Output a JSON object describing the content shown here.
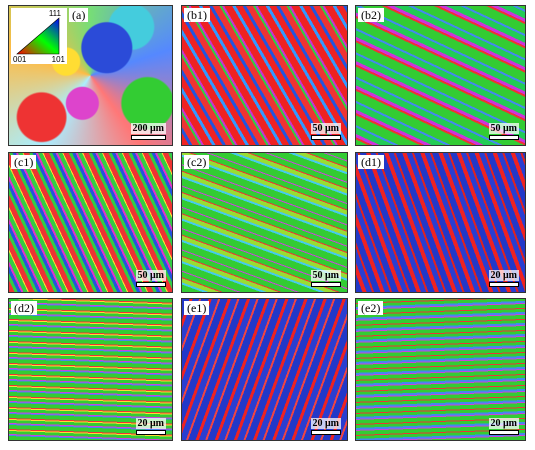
{
  "legend": {
    "top": "111",
    "left": "001",
    "right": "101"
  },
  "panels": [
    {
      "label": "(a)",
      "scale": "200 μm"
    },
    {
      "label": "(b1)",
      "scale": "50 μm"
    },
    {
      "label": "(b2)",
      "scale": "50 μm"
    },
    {
      "label": "(c1)",
      "scale": "50 μm"
    },
    {
      "label": "(c2)",
      "scale": "50 μm"
    },
    {
      "label": "(d1)",
      "scale": "20 μm"
    },
    {
      "label": "(d2)",
      "scale": "20 μm"
    },
    {
      "label": "(e1)",
      "scale": "20 μm"
    },
    {
      "label": "(e2)",
      "scale": "20 μm"
    }
  ]
}
